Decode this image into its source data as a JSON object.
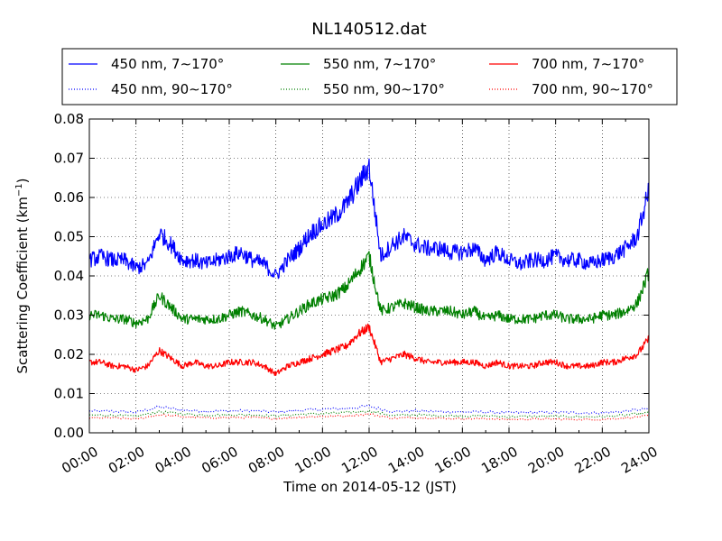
{
  "chart_data": {
    "type": "line",
    "title": "NL140512.dat",
    "xlabel": "Time on 2014-05-12 (JST)",
    "ylabel": "Scattering Coefficient (km",
    "ylabel_sup": "−1",
    "ylabel_close": ")",
    "xlim": [
      0,
      24
    ],
    "ylim": [
      0,
      0.08
    ],
    "x_ticks": [
      0,
      2,
      4,
      6,
      8,
      10,
      12,
      14,
      16,
      18,
      20,
      22,
      24
    ],
    "x_tick_labels": [
      "00:00",
      "02:00",
      "04:00",
      "06:00",
      "08:00",
      "10:00",
      "12:00",
      "14:00",
      "16:00",
      "18:00",
      "20:00",
      "22:00",
      "24:00"
    ],
    "y_ticks": [
      0,
      0.01,
      0.02,
      0.03,
      0.04,
      0.05,
      0.06,
      0.07,
      0.08
    ],
    "y_tick_labels": [
      "0.00",
      "0.01",
      "0.02",
      "0.03",
      "0.04",
      "0.05",
      "0.06",
      "0.07",
      "0.08"
    ],
    "grid": true,
    "legend_position": "top",
    "legend_columns": 3,
    "series": [
      {
        "name": "450 nm, 7∼170°",
        "color": "#0000ff",
        "style": "solid",
        "x": [
          0,
          0.5,
          1,
          1.5,
          2,
          2.5,
          3,
          3.5,
          4,
          4.5,
          5,
          5.5,
          6,
          6.5,
          7,
          7.5,
          8,
          8.5,
          9,
          9.5,
          10,
          10.5,
          11,
          11.5,
          12,
          12.5,
          13,
          13.5,
          14,
          14.5,
          15,
          15.5,
          16,
          16.5,
          17,
          17.5,
          18,
          18.5,
          19,
          19.5,
          20,
          20.5,
          21,
          21.5,
          22,
          22.5,
          23,
          23.5,
          24
        ],
        "values": [
          0.044,
          0.045,
          0.044,
          0.044,
          0.042,
          0.043,
          0.051,
          0.048,
          0.044,
          0.044,
          0.043,
          0.044,
          0.045,
          0.046,
          0.044,
          0.043,
          0.04,
          0.044,
          0.047,
          0.051,
          0.053,
          0.055,
          0.058,
          0.063,
          0.068,
          0.045,
          0.048,
          0.05,
          0.048,
          0.047,
          0.047,
          0.046,
          0.046,
          0.047,
          0.044,
          0.046,
          0.044,
          0.043,
          0.044,
          0.044,
          0.045,
          0.044,
          0.044,
          0.043,
          0.044,
          0.045,
          0.047,
          0.05,
          0.062
        ]
      },
      {
        "name": "550 nm, 7∼170°",
        "color": "#008000",
        "style": "solid",
        "x": [
          0,
          0.5,
          1,
          1.5,
          2,
          2.5,
          3,
          3.5,
          4,
          4.5,
          5,
          5.5,
          6,
          6.5,
          7,
          7.5,
          8,
          8.5,
          9,
          9.5,
          10,
          10.5,
          11,
          11.5,
          12,
          12.5,
          13,
          13.5,
          14,
          14.5,
          15,
          15.5,
          16,
          16.5,
          17,
          17.5,
          18,
          18.5,
          19,
          19.5,
          20,
          20.5,
          21,
          21.5,
          22,
          22.5,
          23,
          23.5,
          24
        ],
        "values": [
          0.03,
          0.03,
          0.029,
          0.029,
          0.028,
          0.029,
          0.035,
          0.032,
          0.029,
          0.029,
          0.029,
          0.029,
          0.03,
          0.031,
          0.03,
          0.029,
          0.027,
          0.029,
          0.031,
          0.033,
          0.034,
          0.035,
          0.037,
          0.041,
          0.045,
          0.031,
          0.032,
          0.033,
          0.032,
          0.031,
          0.031,
          0.031,
          0.03,
          0.031,
          0.029,
          0.03,
          0.029,
          0.029,
          0.029,
          0.03,
          0.03,
          0.029,
          0.029,
          0.029,
          0.03,
          0.03,
          0.031,
          0.033,
          0.041
        ]
      },
      {
        "name": "700 nm, 7∼170°",
        "color": "#ff0000",
        "style": "solid",
        "x": [
          0,
          0.5,
          1,
          1.5,
          2,
          2.5,
          3,
          3.5,
          4,
          4.5,
          5,
          5.5,
          6,
          6.5,
          7,
          7.5,
          8,
          8.5,
          9,
          9.5,
          10,
          10.5,
          11,
          11.5,
          12,
          12.5,
          13,
          13.5,
          14,
          14.5,
          15,
          15.5,
          16,
          16.5,
          17,
          17.5,
          18,
          18.5,
          19,
          19.5,
          20,
          20.5,
          21,
          21.5,
          22,
          22.5,
          23,
          23.5,
          24
        ],
        "values": [
          0.018,
          0.018,
          0.017,
          0.017,
          0.016,
          0.017,
          0.021,
          0.019,
          0.017,
          0.018,
          0.017,
          0.017,
          0.018,
          0.018,
          0.018,
          0.017,
          0.015,
          0.017,
          0.018,
          0.019,
          0.02,
          0.021,
          0.022,
          0.025,
          0.027,
          0.018,
          0.019,
          0.02,
          0.019,
          0.018,
          0.018,
          0.018,
          0.018,
          0.018,
          0.017,
          0.018,
          0.017,
          0.017,
          0.017,
          0.018,
          0.018,
          0.017,
          0.017,
          0.017,
          0.018,
          0.018,
          0.019,
          0.02,
          0.024
        ]
      },
      {
        "name": "450 nm, 90∼170°",
        "color": "#0000ff",
        "style": "dotted",
        "x": [
          0,
          1,
          2,
          3,
          4,
          5,
          6,
          7,
          8,
          9,
          10,
          11,
          12,
          13,
          14,
          15,
          16,
          17,
          18,
          19,
          20,
          21,
          22,
          23,
          24
        ],
        "values": [
          0.0055,
          0.0055,
          0.0052,
          0.0066,
          0.0058,
          0.0055,
          0.0056,
          0.0056,
          0.0053,
          0.0057,
          0.006,
          0.0062,
          0.0068,
          0.0054,
          0.0056,
          0.0054,
          0.0053,
          0.0053,
          0.0051,
          0.0052,
          0.0052,
          0.0051,
          0.0051,
          0.0055,
          0.0062
        ]
      },
      {
        "name": "550 nm, 90∼170°",
        "color": "#008000",
        "style": "dotted",
        "x": [
          0,
          1,
          2,
          3,
          4,
          5,
          6,
          7,
          8,
          9,
          10,
          11,
          12,
          13,
          14,
          15,
          16,
          17,
          18,
          19,
          20,
          21,
          22,
          23,
          24
        ],
        "values": [
          0.0045,
          0.0045,
          0.0042,
          0.0054,
          0.0048,
          0.0045,
          0.0046,
          0.0046,
          0.0043,
          0.0047,
          0.0049,
          0.0051,
          0.0056,
          0.0044,
          0.0046,
          0.0044,
          0.0043,
          0.0043,
          0.0041,
          0.0042,
          0.0042,
          0.0041,
          0.0041,
          0.0045,
          0.0051
        ]
      },
      {
        "name": "700 nm, 90∼170°",
        "color": "#ff0000",
        "style": "dotted",
        "x": [
          0,
          1,
          2,
          3,
          4,
          5,
          6,
          7,
          8,
          9,
          10,
          11,
          12,
          13,
          14,
          15,
          16,
          17,
          18,
          19,
          20,
          21,
          22,
          23,
          24
        ],
        "values": [
          0.0038,
          0.0038,
          0.0035,
          0.0046,
          0.0041,
          0.0038,
          0.0039,
          0.0039,
          0.0036,
          0.004,
          0.0042,
          0.0043,
          0.0048,
          0.0037,
          0.0039,
          0.0037,
          0.0036,
          0.0036,
          0.0034,
          0.0035,
          0.0035,
          0.0034,
          0.0034,
          0.0038,
          0.0043
        ]
      }
    ]
  }
}
